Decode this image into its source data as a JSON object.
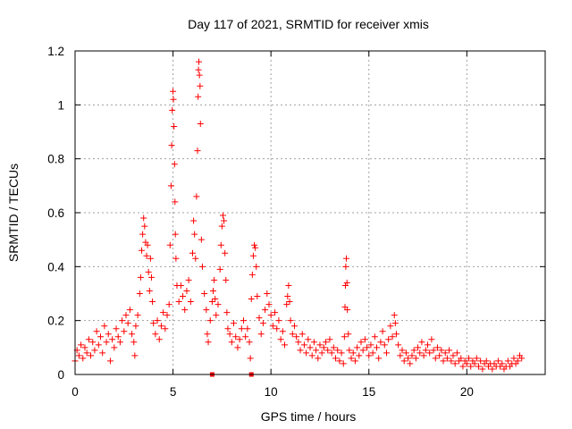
{
  "chart_data": {
    "type": "scatter",
    "title": "Day 117 of 2021, SRMTID for receiver xmis",
    "xlabel": "GPS time / hours",
    "ylabel": "SRMTID / TECUs",
    "xlim": [
      0,
      24
    ],
    "ylim": [
      0,
      1.2
    ],
    "x_ticks": [
      0,
      5,
      10,
      15,
      20
    ],
    "x_tick_labels": [
      "0",
      "5",
      "10",
      "15",
      "20"
    ],
    "y_ticks": [
      0,
      0.2,
      0.4,
      0.6,
      0.8,
      1.0,
      1.2
    ],
    "y_tick_labels": [
      "0",
      "0.2",
      "0.4",
      "0.6",
      "0.8",
      "1",
      "1.2"
    ],
    "grid": true,
    "marker": "plus",
    "series": [
      {
        "name": "SRMTID",
        "color": "#ff0000",
        "points": [
          [
            0.0,
            0.05
          ],
          [
            0.1,
            0.09
          ],
          [
            0.2,
            0.07
          ],
          [
            0.3,
            0.11
          ],
          [
            0.4,
            0.06
          ],
          [
            0.5,
            0.1
          ],
          [
            0.6,
            0.08
          ],
          [
            0.7,
            0.13
          ],
          [
            0.8,
            0.07
          ],
          [
            0.9,
            0.12
          ],
          [
            1.0,
            0.09
          ],
          [
            1.1,
            0.16
          ],
          [
            1.2,
            0.11
          ],
          [
            1.3,
            0.14
          ],
          [
            1.4,
            0.08
          ],
          [
            1.5,
            0.18
          ],
          [
            1.6,
            0.12
          ],
          [
            1.7,
            0.15
          ],
          [
            1.8,
            0.05
          ],
          [
            1.9,
            0.13
          ],
          [
            2.0,
            0.1
          ],
          [
            2.1,
            0.17
          ],
          [
            2.2,
            0.14
          ],
          [
            2.3,
            0.12
          ],
          [
            2.4,
            0.2
          ],
          [
            2.5,
            0.16
          ],
          [
            2.6,
            0.22
          ],
          [
            2.7,
            0.19
          ],
          [
            2.8,
            0.24
          ],
          [
            2.9,
            0.15
          ],
          [
            3.0,
            0.12
          ],
          [
            3.05,
            0.07
          ],
          [
            3.1,
            0.18
          ],
          [
            3.2,
            0.22
          ],
          [
            3.3,
            0.3
          ],
          [
            3.35,
            0.36
          ],
          [
            3.4,
            0.46
          ],
          [
            3.45,
            0.52
          ],
          [
            3.5,
            0.58
          ],
          [
            3.55,
            0.55
          ],
          [
            3.6,
            0.49
          ],
          [
            3.65,
            0.44
          ],
          [
            3.7,
            0.48
          ],
          [
            3.75,
            0.38
          ],
          [
            3.8,
            0.31
          ],
          [
            3.85,
            0.43
          ],
          [
            3.9,
            0.36
          ],
          [
            3.95,
            0.27
          ],
          [
            4.0,
            0.19
          ],
          [
            4.1,
            0.15
          ],
          [
            4.2,
            0.2
          ],
          [
            4.3,
            0.13
          ],
          [
            4.4,
            0.18
          ],
          [
            4.5,
            0.23
          ],
          [
            4.6,
            0.17
          ],
          [
            4.7,
            0.22
          ],
          [
            4.8,
            0.26
          ],
          [
            4.85,
            0.48
          ],
          [
            4.9,
            0.7
          ],
          [
            4.93,
            0.85
          ],
          [
            4.96,
            0.98
          ],
          [
            5.0,
            1.05
          ],
          [
            5.02,
            1.02
          ],
          [
            5.05,
            0.92
          ],
          [
            5.08,
            0.78
          ],
          [
            5.1,
            0.64
          ],
          [
            5.12,
            0.52
          ],
          [
            5.15,
            0.43
          ],
          [
            5.2,
            0.33
          ],
          [
            5.3,
            0.27
          ],
          [
            5.4,
            0.33
          ],
          [
            5.5,
            0.29
          ],
          [
            5.6,
            0.24
          ],
          [
            5.7,
            0.31
          ],
          [
            5.8,
            0.35
          ],
          [
            5.9,
            0.27
          ],
          [
            6.0,
            0.45
          ],
          [
            6.05,
            0.57
          ],
          [
            6.1,
            0.52
          ],
          [
            6.15,
            0.43
          ],
          [
            6.2,
            0.66
          ],
          [
            6.25,
            0.83
          ],
          [
            6.28,
            1.03
          ],
          [
            6.3,
            1.13
          ],
          [
            6.32,
            1.16
          ],
          [
            6.35,
            1.11
          ],
          [
            6.38,
            1.07
          ],
          [
            6.4,
            0.93
          ],
          [
            6.45,
            0.5
          ],
          [
            6.5,
            0.4
          ],
          [
            6.6,
            0.3
          ],
          [
            6.7,
            0.24
          ],
          [
            6.75,
            0.15
          ],
          [
            6.8,
            0.12
          ],
          [
            6.9,
            0.2
          ],
          [
            7.0,
            0.27
          ],
          [
            7.05,
            0.31
          ],
          [
            7.1,
            0.35
          ],
          [
            7.15,
            0.28
          ],
          [
            7.2,
            0.22
          ],
          [
            7.3,
            0.26
          ],
          [
            7.4,
            0.39
          ],
          [
            7.45,
            0.48
          ],
          [
            7.5,
            0.55
          ],
          [
            7.55,
            0.59
          ],
          [
            7.6,
            0.57
          ],
          [
            7.65,
            0.45
          ],
          [
            7.7,
            0.35
          ],
          [
            7.75,
            0.23
          ],
          [
            7.8,
            0.17
          ],
          [
            7.9,
            0.15
          ],
          [
            8.0,
            0.12
          ],
          [
            8.1,
            0.19
          ],
          [
            8.2,
            0.14
          ],
          [
            8.3,
            0.1
          ],
          [
            8.4,
            0.13
          ],
          [
            8.5,
            0.17
          ],
          [
            8.6,
            0.2
          ],
          [
            8.7,
            0.14
          ],
          [
            8.8,
            0.17
          ],
          [
            8.9,
            0.12
          ],
          [
            8.95,
            0.06
          ],
          [
            9.0,
            0.28
          ],
          [
            9.05,
            0.37
          ],
          [
            9.1,
            0.44
          ],
          [
            9.15,
            0.48
          ],
          [
            9.2,
            0.47
          ],
          [
            9.25,
            0.4
          ],
          [
            9.3,
            0.29
          ],
          [
            9.4,
            0.21
          ],
          [
            9.5,
            0.15
          ],
          [
            9.6,
            0.19
          ],
          [
            9.7,
            0.24
          ],
          [
            9.8,
            0.3
          ],
          [
            9.9,
            0.26
          ],
          [
            10.0,
            0.22
          ],
          [
            10.1,
            0.18
          ],
          [
            10.2,
            0.23
          ],
          [
            10.3,
            0.17
          ],
          [
            10.4,
            0.2
          ],
          [
            10.5,
            0.13
          ],
          [
            10.6,
            0.16
          ],
          [
            10.7,
            0.11
          ],
          [
            10.8,
            0.26
          ],
          [
            10.85,
            0.29
          ],
          [
            10.9,
            0.33
          ],
          [
            10.95,
            0.27
          ],
          [
            11.0,
            0.2
          ],
          [
            11.1,
            0.15
          ],
          [
            11.2,
            0.18
          ],
          [
            11.3,
            0.14
          ],
          [
            11.4,
            0.12
          ],
          [
            11.5,
            0.09
          ],
          [
            11.6,
            0.15
          ],
          [
            11.7,
            0.11
          ],
          [
            11.8,
            0.08
          ],
          [
            11.9,
            0.13
          ],
          [
            12.0,
            0.1
          ],
          [
            12.1,
            0.07
          ],
          [
            12.2,
            0.12
          ],
          [
            12.3,
            0.09
          ],
          [
            12.4,
            0.06
          ],
          [
            12.5,
            0.11
          ],
          [
            12.6,
            0.08
          ],
          [
            12.7,
            0.1
          ],
          [
            12.8,
            0.12
          ],
          [
            12.9,
            0.09
          ],
          [
            13.0,
            0.13
          ],
          [
            13.1,
            0.08
          ],
          [
            13.2,
            0.1
          ],
          [
            13.3,
            0.06
          ],
          [
            13.4,
            0.09
          ],
          [
            13.5,
            0.05
          ],
          [
            13.6,
            0.08
          ],
          [
            13.7,
            0.04
          ],
          [
            13.75,
            0.14
          ],
          [
            13.78,
            0.25
          ],
          [
            13.8,
            0.33
          ],
          [
            13.82,
            0.4
          ],
          [
            13.85,
            0.43
          ],
          [
            13.88,
            0.34
          ],
          [
            13.9,
            0.24
          ],
          [
            13.95,
            0.15
          ],
          [
            14.0,
            0.09
          ],
          [
            14.1,
            0.06
          ],
          [
            14.2,
            0.08
          ],
          [
            14.3,
            0.05
          ],
          [
            14.4,
            0.1
          ],
          [
            14.5,
            0.07
          ],
          [
            14.6,
            0.12
          ],
          [
            14.7,
            0.09
          ],
          [
            14.8,
            0.13
          ],
          [
            14.9,
            0.1
          ],
          [
            15.0,
            0.07
          ],
          [
            15.1,
            0.11
          ],
          [
            15.2,
            0.08
          ],
          [
            15.3,
            0.14
          ],
          [
            15.4,
            0.1
          ],
          [
            15.5,
            0.06
          ],
          [
            15.6,
            0.12
          ],
          [
            15.7,
            0.16
          ],
          [
            15.8,
            0.11
          ],
          [
            15.9,
            0.08
          ],
          [
            16.0,
            0.13
          ],
          [
            16.1,
            0.18
          ],
          [
            16.2,
            0.14
          ],
          [
            16.3,
            0.22
          ],
          [
            16.35,
            0.19
          ],
          [
            16.4,
            0.15
          ],
          [
            16.5,
            0.11
          ],
          [
            16.6,
            0.07
          ],
          [
            16.7,
            0.09
          ],
          [
            16.8,
            0.05
          ],
          [
            16.9,
            0.08
          ],
          [
            17.0,
            0.06
          ],
          [
            17.1,
            0.04
          ],
          [
            17.2,
            0.07
          ],
          [
            17.3,
            0.09
          ],
          [
            17.4,
            0.06
          ],
          [
            17.5,
            0.1
          ],
          [
            17.6,
            0.08
          ],
          [
            17.7,
            0.12
          ],
          [
            17.8,
            0.07
          ],
          [
            17.9,
            0.09
          ],
          [
            18.0,
            0.11
          ],
          [
            18.1,
            0.08
          ],
          [
            18.2,
            0.13
          ],
          [
            18.3,
            0.09
          ],
          [
            18.4,
            0.06
          ],
          [
            18.5,
            0.1
          ],
          [
            18.6,
            0.07
          ],
          [
            18.7,
            0.09
          ],
          [
            18.8,
            0.05
          ],
          [
            18.9,
            0.08
          ],
          [
            19.0,
            0.06
          ],
          [
            19.1,
            0.09
          ],
          [
            19.2,
            0.05
          ],
          [
            19.3,
            0.07
          ],
          [
            19.4,
            0.04
          ],
          [
            19.5,
            0.08
          ],
          [
            19.6,
            0.05
          ],
          [
            19.7,
            0.06
          ],
          [
            19.8,
            0.03
          ],
          [
            19.9,
            0.05
          ],
          [
            20.0,
            0.04
          ],
          [
            20.1,
            0.06
          ],
          [
            20.2,
            0.03
          ],
          [
            20.3,
            0.05
          ],
          [
            20.4,
            0.04
          ],
          [
            20.5,
            0.06
          ],
          [
            20.6,
            0.03
          ],
          [
            20.7,
            0.05
          ],
          [
            20.8,
            0.02
          ],
          [
            20.9,
            0.04
          ],
          [
            21.0,
            0.05
          ],
          [
            21.1,
            0.03
          ],
          [
            21.2,
            0.04
          ],
          [
            21.3,
            0.02
          ],
          [
            21.4,
            0.04
          ],
          [
            21.5,
            0.03
          ],
          [
            21.6,
            0.05
          ],
          [
            21.7,
            0.03
          ],
          [
            21.8,
            0.04
          ],
          [
            21.9,
            0.02
          ],
          [
            22.0,
            0.03
          ],
          [
            22.1,
            0.05
          ],
          [
            22.2,
            0.03
          ],
          [
            22.3,
            0.04
          ],
          [
            22.4,
            0.06
          ],
          [
            22.5,
            0.04
          ],
          [
            22.6,
            0.05
          ],
          [
            22.7,
            0.07
          ],
          [
            22.8,
            0.06
          ]
        ]
      }
    ],
    "gap_markers": [
      7.0,
      9.0
    ]
  }
}
